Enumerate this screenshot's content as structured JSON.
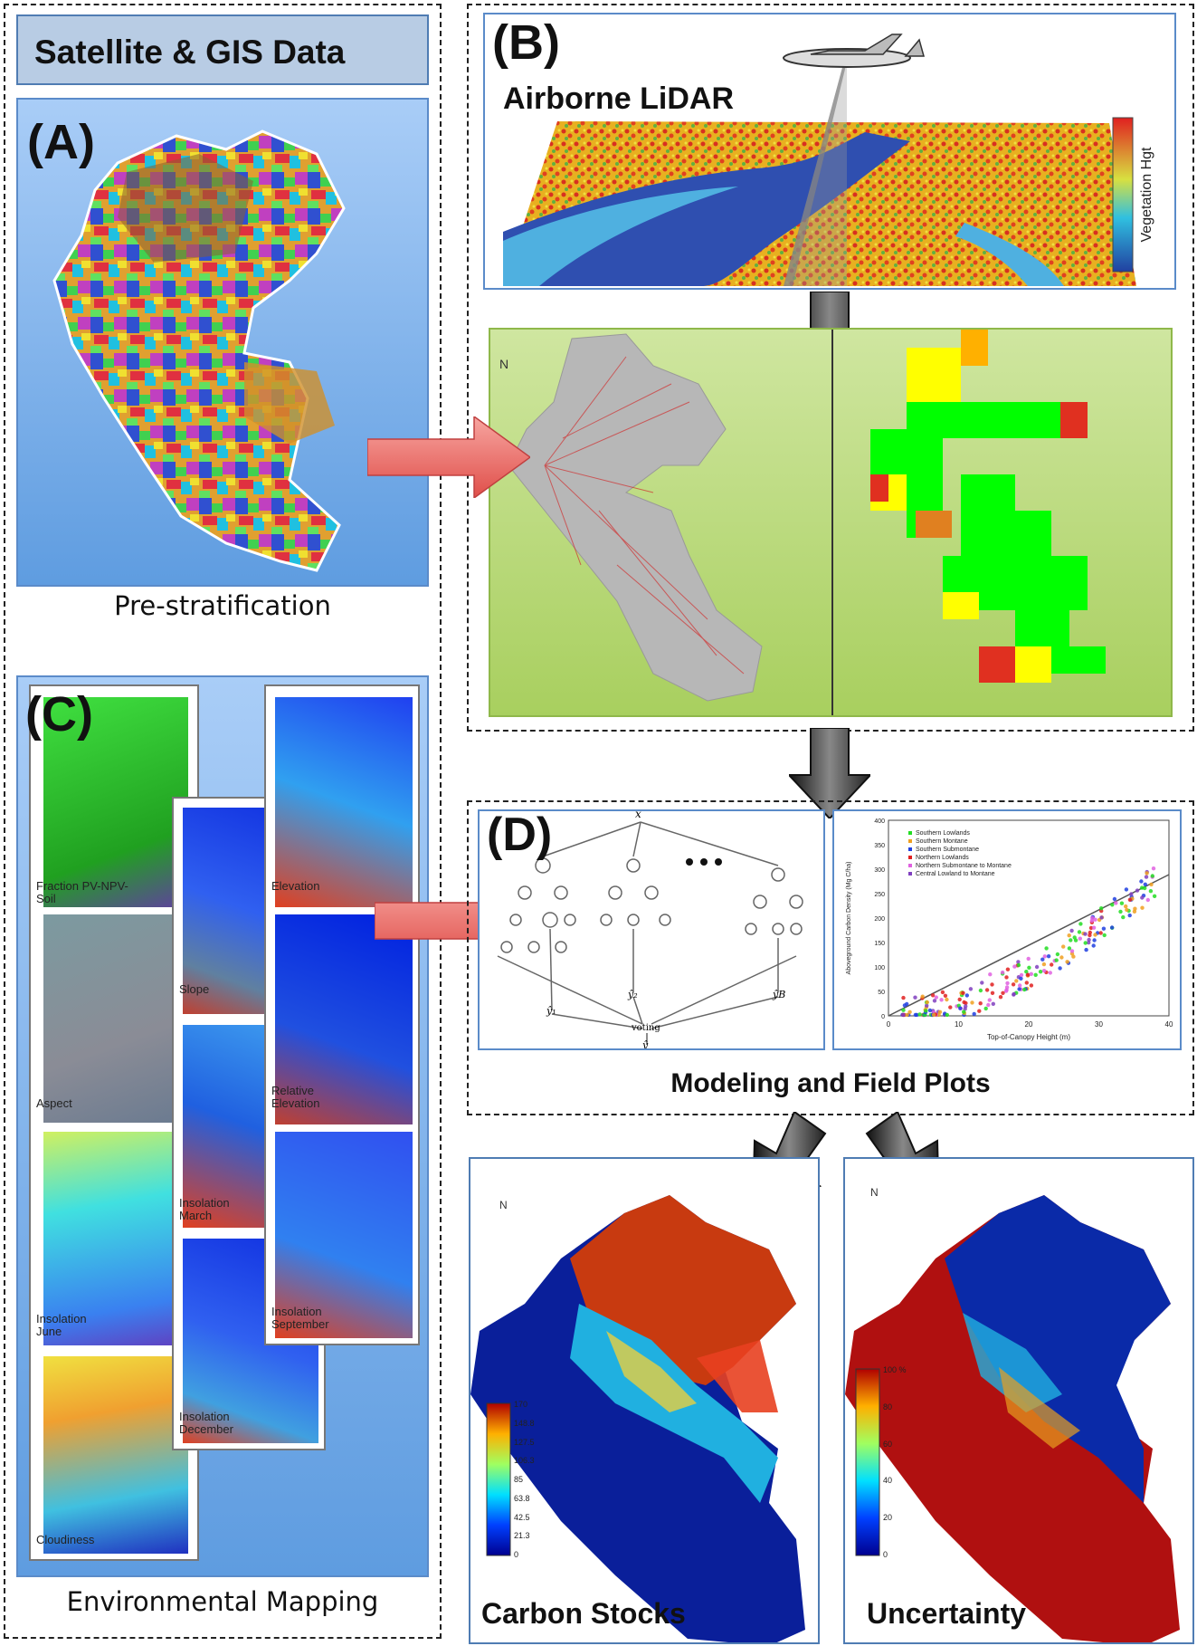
{
  "header": {
    "title": "Satellite & GIS Data"
  },
  "panels": {
    "a": {
      "letter": "(A)",
      "caption": "Pre-stratification"
    },
    "b": {
      "letter": "(B)",
      "title": "Airborne LiDAR",
      "legend_label": "Vegetation Hgt"
    },
    "c": {
      "letter": "(C)",
      "caption": "Environmental Mapping",
      "layers": [
        "Fraction PV-NPV-Soil",
        "Aspect",
        "Insolation June",
        "Cloudiness",
        "Slope",
        "Insolation March",
        "Insolation December",
        "Elevation",
        "Relative Elevation",
        "Insolation September"
      ]
    },
    "d": {
      "letter": "(D)",
      "caption": "Modeling and Field Plots",
      "tree_labels": [
        "x",
        "ŷ₁",
        "ŷ₂",
        "ŷB",
        "voting",
        "ŷ"
      ],
      "scatter": {
        "xlabel": "Top-of-Canopy Height (m)",
        "ylabel": "Aboveground Carbon Density (Mg C/ha)",
        "legend": [
          "Southern Lowlands",
          "Southern Montane",
          "Southern Submontane",
          "Northern Lowlands",
          "Northern Submontane to Montane",
          "Central Lowland to Montane"
        ],
        "xticks": [
          "0",
          "10",
          "20",
          "30",
          "40"
        ],
        "yticks": [
          "0",
          "50",
          "100",
          "150",
          "200",
          "250",
          "300",
          "350",
          "400"
        ]
      }
    },
    "carbon": {
      "caption": "Carbon Stocks",
      "ticks": [
        "170",
        "148.8",
        "127.5",
        "106.3",
        "85",
        "63.8",
        "42.5",
        "21.3",
        "0"
      ]
    },
    "uncert": {
      "caption": "Uncertainty",
      "ticks": [
        "100 %",
        "80",
        "60",
        "40",
        "20",
        "0"
      ]
    }
  },
  "north_label": "N",
  "colors": {
    "panel_border": "#5b8bc9",
    "arrow_red": "#e8706e",
    "arrow_dark": "#333333",
    "green_panel": "#c3dd86"
  }
}
